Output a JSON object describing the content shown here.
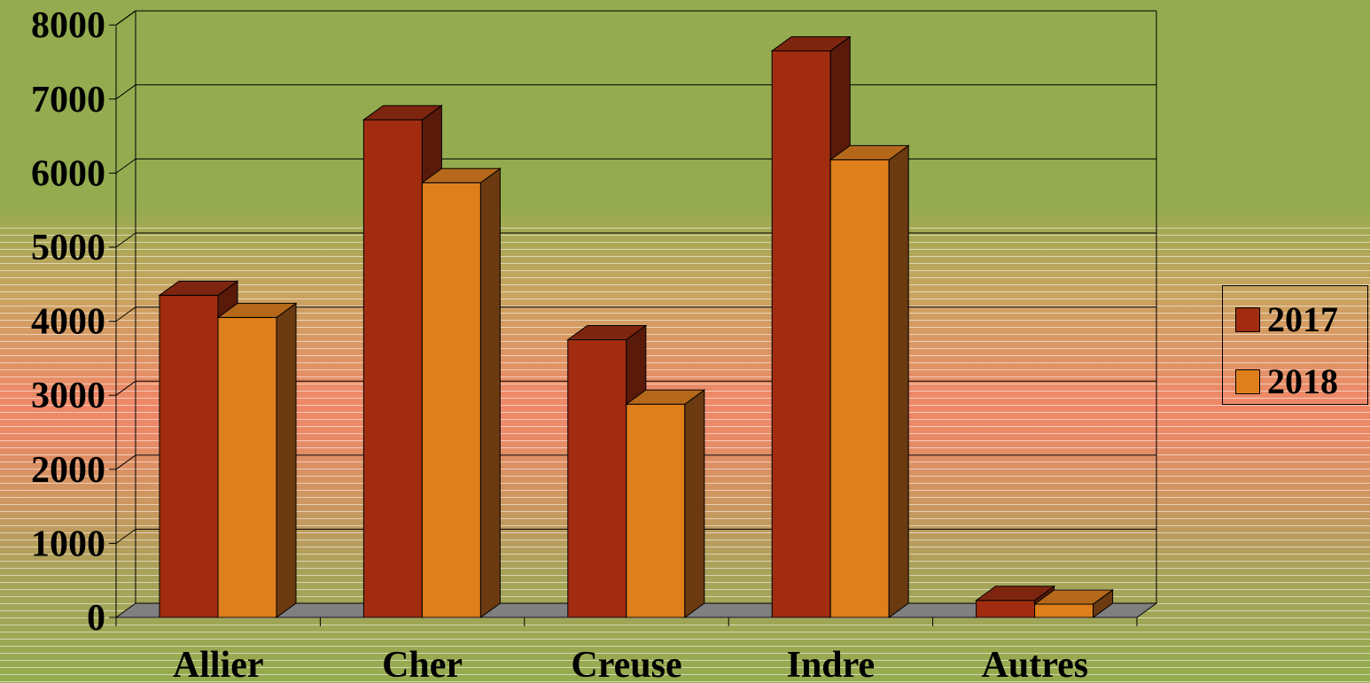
{
  "chart_data": {
    "type": "bar",
    "style": "3d-clustered",
    "categories": [
      "Allier",
      "Cher",
      "Creuse",
      "Indre",
      "Autres"
    ],
    "series": [
      {
        "name": "2017",
        "values": [
          4350,
          6720,
          3750,
          7650,
          230
        ],
        "color": "#a22c10",
        "side_color": "#5a1a0a",
        "top_color": "#7e2510"
      },
      {
        "name": "2018",
        "values": [
          4050,
          5870,
          2880,
          6180,
          180
        ],
        "color": "#df7f1c",
        "side_color": "#6b3a10",
        "top_color": "#b5681a"
      }
    ],
    "yticks": [
      "0",
      "1000",
      "2000",
      "3000",
      "4000",
      "5000",
      "6000",
      "7000",
      "8000"
    ],
    "ylim": [
      0,
      8000
    ],
    "grid": true,
    "legend_position": "right",
    "floor_color": "#808080"
  }
}
